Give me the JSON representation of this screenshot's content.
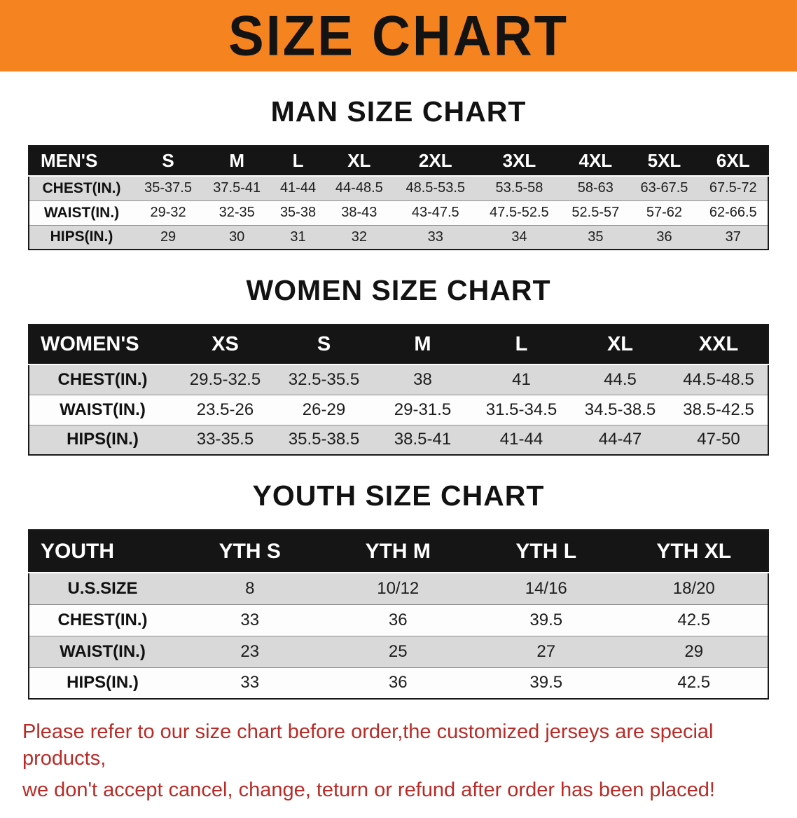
{
  "banner": {
    "title": "SIZE CHART",
    "bg_color": "#f5831f",
    "text_color": "#131313"
  },
  "sections": [
    {
      "id": "mens",
      "heading": "MAN SIZE CHART",
      "header": [
        "MEN'S",
        "S",
        "M",
        "L",
        "XL",
        "2XL",
        "3XL",
        "4XL",
        "5XL",
        "6XL"
      ],
      "rows": [
        {
          "label": "CHEST(IN.)",
          "values": [
            "35-37.5",
            "37.5-41",
            "41-44",
            "44-48.5",
            "48.5-53.5",
            "53.5-58",
            "58-63",
            "63-67.5",
            "67.5-72"
          ]
        },
        {
          "label": "WAIST(IN.)",
          "values": [
            "29-32",
            "32-35",
            "35-38",
            "38-43",
            "43-47.5",
            "47.5-52.5",
            "52.5-57",
            "57-62",
            "62-66.5"
          ]
        },
        {
          "label": "HIPS(IN.)",
          "values": [
            "29",
            "30",
            "31",
            "32",
            "33",
            "34",
            "35",
            "36",
            "37"
          ]
        }
      ]
    },
    {
      "id": "womens",
      "heading": "WOMEN SIZE CHART",
      "header": [
        "WOMEN'S",
        "XS",
        "S",
        "M",
        "L",
        "XL",
        "XXL"
      ],
      "rows": [
        {
          "label": "CHEST(IN.)",
          "values": [
            "29.5-32.5",
            "32.5-35.5",
            "38",
            "41",
            "44.5",
            "44.5-48.5"
          ]
        },
        {
          "label": "WAIST(IN.)",
          "values": [
            "23.5-26",
            "26-29",
            "29-31.5",
            "31.5-34.5",
            "34.5-38.5",
            "38.5-42.5"
          ]
        },
        {
          "label": "HIPS(IN.)",
          "values": [
            "33-35.5",
            "35.5-38.5",
            "38.5-41",
            "41-44",
            "44-47",
            "47-50"
          ]
        }
      ]
    },
    {
      "id": "youth",
      "heading": "YOUTH SIZE CHART",
      "header": [
        "YOUTH",
        "YTH S",
        "YTH M",
        "YTH L",
        "YTH XL"
      ],
      "rows": [
        {
          "label": "U.S.SIZE",
          "values": [
            "8",
            "10/12",
            "14/16",
            "18/20"
          ]
        },
        {
          "label": "CHEST(IN.)",
          "values": [
            "33",
            "36",
            "39.5",
            "42.5"
          ]
        },
        {
          "label": "WAIST(IN.)",
          "values": [
            "23",
            "25",
            "27",
            "29"
          ]
        },
        {
          "label": "HIPS(IN.)",
          "values": [
            "33",
            "36",
            "39.5",
            "42.5"
          ]
        }
      ]
    }
  ],
  "disclaimer": {
    "line1": "Please refer to our size chart before order,the customized jerseys are special products,",
    "line2": "we don't accept cancel, change, teturn or refund after order has been placed!",
    "color": "#b92b27"
  }
}
